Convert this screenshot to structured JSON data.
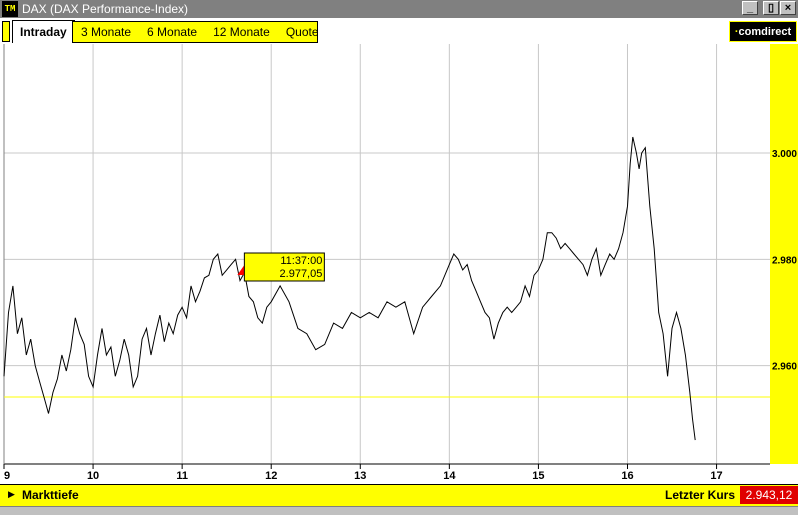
{
  "window": {
    "icon_text": "TM",
    "title": "DAX (DAX Performance-Index)",
    "buttons": {
      "minimize": "_",
      "restore": "▯",
      "close": "×"
    }
  },
  "tabs": {
    "active": "Intraday",
    "items": [
      "3 Monate",
      "6 Monate",
      "12 Monate",
      "Quote"
    ],
    "logo": "comdirect"
  },
  "tooltip": {
    "time": "11:37:00",
    "value": "2.977,05"
  },
  "footer": {
    "left_label": "Markttiefe",
    "right_label": "Letzter Kurs",
    "last_price": "2.943,12"
  },
  "colors": {
    "accent": "#ffff00",
    "price_box": "#e00000",
    "line": "#000000",
    "reference_line": "#ffff00",
    "marker": "#ff0000"
  },
  "chart_data": {
    "type": "line",
    "x_tick_labels": [
      "9",
      "10",
      "11",
      "12",
      "13",
      "14",
      "15",
      "16",
      "17"
    ],
    "y_tick_labels": [
      "3.000",
      "2.980",
      "2.960"
    ],
    "xlim": [
      9.0,
      17.6
    ],
    "ylim": [
      2941.5,
      3020.5
    ],
    "reference_level": 2954.1,
    "marker": {
      "x": 11.62,
      "y": 2977.05
    },
    "grid": true,
    "x": [
      9.0,
      9.05,
      9.1,
      9.15,
      9.2,
      9.25,
      9.3,
      9.35,
      9.4,
      9.45,
      9.5,
      9.55,
      9.6,
      9.65,
      9.7,
      9.75,
      9.8,
      9.85,
      9.9,
      9.95,
      10.0,
      10.05,
      10.1,
      10.15,
      10.2,
      10.25,
      10.3,
      10.35,
      10.4,
      10.45,
      10.5,
      10.55,
      10.6,
      10.65,
      10.7,
      10.75,
      10.8,
      10.85,
      10.9,
      10.95,
      11.0,
      11.05,
      11.1,
      11.15,
      11.2,
      11.25,
      11.3,
      11.35,
      11.4,
      11.45,
      11.5,
      11.55,
      11.6,
      11.65,
      11.7,
      11.75,
      11.8,
      11.85,
      11.9,
      11.95,
      12.0,
      12.1,
      12.2,
      12.3,
      12.4,
      12.5,
      12.6,
      12.7,
      12.8,
      12.9,
      13.0,
      13.1,
      13.2,
      13.3,
      13.4,
      13.5,
      13.6,
      13.7,
      13.8,
      13.9,
      14.0,
      14.05,
      14.1,
      14.15,
      14.2,
      14.25,
      14.3,
      14.35,
      14.4,
      14.45,
      14.5,
      14.55,
      14.6,
      14.65,
      14.7,
      14.75,
      14.8,
      14.85,
      14.9,
      14.95,
      15.0,
      15.05,
      15.1,
      15.15,
      15.2,
      15.25,
      15.3,
      15.35,
      15.4,
      15.45,
      15.5,
      15.55,
      15.6,
      15.65,
      15.7,
      15.75,
      15.8,
      15.85,
      15.9,
      15.95,
      16.0,
      16.03,
      16.06,
      16.1,
      16.13,
      16.16,
      16.2,
      16.25,
      16.3,
      16.35,
      16.4,
      16.45,
      16.5,
      16.55,
      16.6,
      16.65,
      16.7,
      16.73,
      16.76
    ],
    "y": [
      2958.0,
      2970.0,
      2975.0,
      2966.0,
      2969.0,
      2962.0,
      2965.0,
      2960.0,
      2957.0,
      2954.0,
      2951.0,
      2955.0,
      2957.5,
      2962.0,
      2959.0,
      2963.0,
      2969.0,
      2966.0,
      2964.0,
      2958.0,
      2956.0,
      2962.0,
      2967.0,
      2962.0,
      2963.5,
      2958.0,
      2961.0,
      2965.0,
      2962.0,
      2956.0,
      2958.0,
      2965.0,
      2967.0,
      2962.0,
      2966.0,
      2969.5,
      2964.5,
      2968.0,
      2966.0,
      2969.5,
      2971.0,
      2969.0,
      2975.0,
      2972.0,
      2974.0,
      2976.5,
      2977.0,
      2980.0,
      2981.0,
      2977.0,
      2978.0,
      2979.0,
      2980.0,
      2976.0,
      2977.5,
      2973.0,
      2972.0,
      2969.0,
      2968.0,
      2971.0,
      2972.0,
      2975.0,
      2972.0,
      2967.0,
      2966.0,
      2963.0,
      2964.0,
      2968.0,
      2967.0,
      2970.0,
      2969.0,
      2970.0,
      2969.0,
      2972.0,
      2971.0,
      2972.0,
      2966.0,
      2971.0,
      2973.0,
      2975.0,
      2979.0,
      2981.0,
      2980.0,
      2978.0,
      2979.0,
      2976.0,
      2974.0,
      2972.0,
      2970.0,
      2969.0,
      2965.0,
      2968.0,
      2970.0,
      2971.0,
      2970.0,
      2971.0,
      2972.0,
      2975.0,
      2973.0,
      2977.0,
      2978.0,
      2980.0,
      2985.0,
      2985.0,
      2984.0,
      2982.0,
      2983.0,
      2982.0,
      2981.0,
      2980.0,
      2979.0,
      2977.0,
      2980.0,
      2982.0,
      2977.0,
      2979.0,
      2981.0,
      2980.0,
      2982.0,
      2985.0,
      2990.0,
      2998.0,
      3003.0,
      3000.0,
      2997.0,
      3000.0,
      3001.0,
      2990.0,
      2982.0,
      2970.0,
      2966.0,
      2958.0,
      2967.0,
      2970.0,
      2967.0,
      2962.0,
      2955.0,
      2950.0,
      2946.0
    ]
  }
}
